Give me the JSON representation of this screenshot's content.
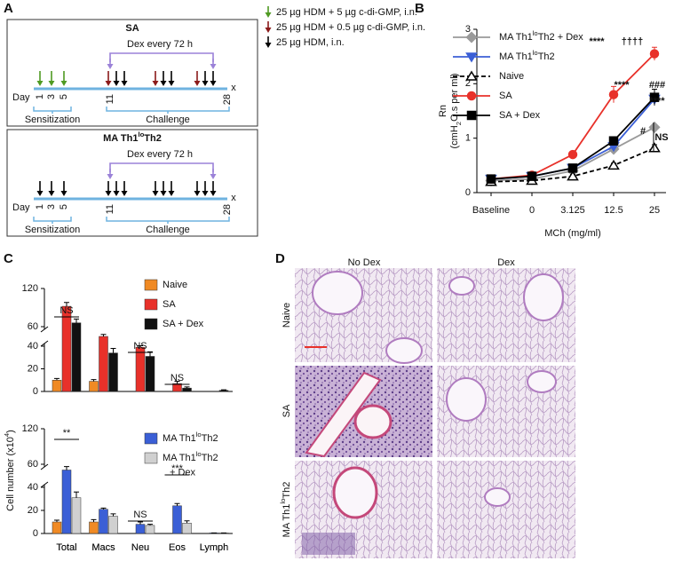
{
  "panel_labels": [
    "A",
    "B",
    "C",
    "D"
  ],
  "schema": {
    "legend": [
      {
        "text": "25 µg HDM + 5 µg c-di-GMP, i.n.",
        "color": "#4f9a22"
      },
      {
        "text": "25 µg HDM + 0.5 µg c-di-GMP, i.n.",
        "color": "#8b1a1a"
      },
      {
        "text": "25 µg HDM, i.n.",
        "color": "#000000"
      }
    ],
    "protocols": [
      {
        "title": "SA",
        "title_color": "#e8312a",
        "dex_note": "Dex every 72 h",
        "day_label": "Day",
        "days": [
          "1",
          "3",
          "5",
          "11",
          "28"
        ],
        "end_mark": "x",
        "phases": [
          "Sensitization",
          "Challenge"
        ]
      },
      {
        "title": [
          "MA Th1",
          "lo",
          "Th2"
        ],
        "title_color": "#3b5fd6",
        "dex_note": "Dex every 72 h",
        "day_label": "Day",
        "days": [
          "1",
          "3",
          "5",
          "11",
          "28"
        ],
        "end_mark": "x",
        "phases": [
          "Sensitization",
          "Challenge"
        ]
      }
    ]
  },
  "chart_data": [
    {
      "type": "line",
      "ylabel": "Rn",
      "ylabel_unit": [
        "(cmH",
        "2",
        "O.s per ml)"
      ],
      "xlabel": "MCh (mg/ml)",
      "categories": [
        "Baseline",
        "0",
        "3.125",
        "12.5",
        "25"
      ],
      "ylim": [
        0,
        3
      ],
      "yticks": [
        0,
        1,
        2,
        3
      ],
      "series": [
        {
          "name": [
            "MA Th1",
            "lo",
            "Th2 + Dex"
          ],
          "color": "#9a9a9a",
          "marker": "diamond",
          "values": [
            0.22,
            0.25,
            0.4,
            0.8,
            1.2
          ],
          "errors": [
            0.02,
            0.02,
            0.03,
            0.05,
            0.05
          ]
        },
        {
          "name": [
            "MA Th1",
            "lo",
            "Th2"
          ],
          "color": "#3b5fd6",
          "marker": "triangle-down",
          "values": [
            0.25,
            0.3,
            0.45,
            0.85,
            1.72
          ],
          "errors": [
            0.03,
            0.03,
            0.04,
            0.05,
            0.1
          ]
        },
        {
          "name": "Naive",
          "color": "#000000",
          "marker": "triangle-up",
          "open": true,
          "dashed": true,
          "values": [
            0.2,
            0.22,
            0.3,
            0.5,
            0.82
          ],
          "errors": [
            0.02,
            0.02,
            0.03,
            0.04,
            0.06
          ]
        },
        {
          "name": "SA",
          "color": "#e8312a",
          "marker": "circle",
          "values": [
            0.25,
            0.32,
            0.7,
            1.8,
            2.55
          ],
          "errors": [
            0.03,
            0.03,
            0.04,
            0.15,
            0.12
          ]
        },
        {
          "name": "SA + Dex",
          "color": "#000000",
          "marker": "square",
          "values": [
            0.25,
            0.3,
            0.45,
            0.95,
            1.75
          ],
          "errors": [
            0.03,
            0.03,
            0.04,
            0.06,
            0.15
          ]
        }
      ],
      "annotations": [
        {
          "text": "****",
          "color": "#e8312a"
        },
        {
          "text": "††††",
          "color": "#e8312a"
        },
        {
          "text": "****",
          "color": "#000000"
        },
        {
          "text": "###",
          "color": "#000000"
        },
        {
          "text": "****",
          "color": "#3b5fd6"
        },
        {
          "text": "#",
          "color": "#9a9a9a"
        },
        {
          "text": "NS",
          "color": "#000000"
        }
      ]
    },
    {
      "type": "bar",
      "ylabel": [
        "Cell number (x10",
        "4",
        ")"
      ],
      "categories": [
        "Total",
        "Macs",
        "Neu",
        "Eos",
        "Lymph"
      ],
      "ylim": [
        0,
        120
      ],
      "yticks": [
        0,
        20,
        40,
        60,
        120
      ],
      "axis_break": [
        40,
        60
      ],
      "series": [
        {
          "name": "Naive",
          "color": "#f08a24",
          "values": [
            10,
            9,
            0,
            0,
            0
          ],
          "errors": [
            1.5,
            1.5,
            0,
            0,
            0
          ]
        },
        {
          "name": "SA",
          "color": "#e8312a",
          "values": [
            92,
            50,
            39,
            7,
            0
          ],
          "errors": [
            6,
            2,
            1.5,
            2,
            0
          ]
        },
        {
          "name": "SA + Dex",
          "color": "#111111",
          "values": [
            66,
            34,
            31,
            3,
            1
          ],
          "errors": [
            6,
            4,
            4,
            1,
            0.5
          ]
        }
      ],
      "annotations": [
        "NS",
        "NS",
        "NS"
      ]
    },
    {
      "type": "bar",
      "categories": [
        "Total",
        "Macs",
        "Neu",
        "Eos",
        "Lymph"
      ],
      "ylim": [
        0,
        120
      ],
      "yticks": [
        0,
        20,
        40,
        60,
        120
      ],
      "axis_break": [
        40,
        60
      ],
      "series": [
        {
          "name": "Naive",
          "in_legend": false,
          "color": "#f08a24",
          "values": [
            10,
            10,
            0,
            0,
            0
          ],
          "errors": [
            1.5,
            2,
            0,
            0,
            0
          ]
        },
        {
          "name": [
            "MA Th1",
            "lo",
            "Th2"
          ],
          "color": "#3b5fd6",
          "values": [
            55,
            21,
            8,
            24,
            0.5
          ],
          "errors": [
            3,
            1,
            2,
            2,
            0
          ]
        },
        {
          "name": [
            "MA Th1",
            "lo",
            "Th2",
            "+ Dex"
          ],
          "color": "#d0d0d0",
          "values": [
            31,
            15,
            7,
            9,
            0.5
          ],
          "errors": [
            5,
            2,
            1,
            2,
            0
          ]
        }
      ],
      "annotations": [
        "**",
        "NS",
        "***"
      ]
    }
  ],
  "histology": {
    "columns": [
      "No Dex",
      "Dex"
    ],
    "rows": [
      "Naive",
      "SA",
      [
        "MA Th1",
        "lo",
        "Th2"
      ]
    ]
  }
}
